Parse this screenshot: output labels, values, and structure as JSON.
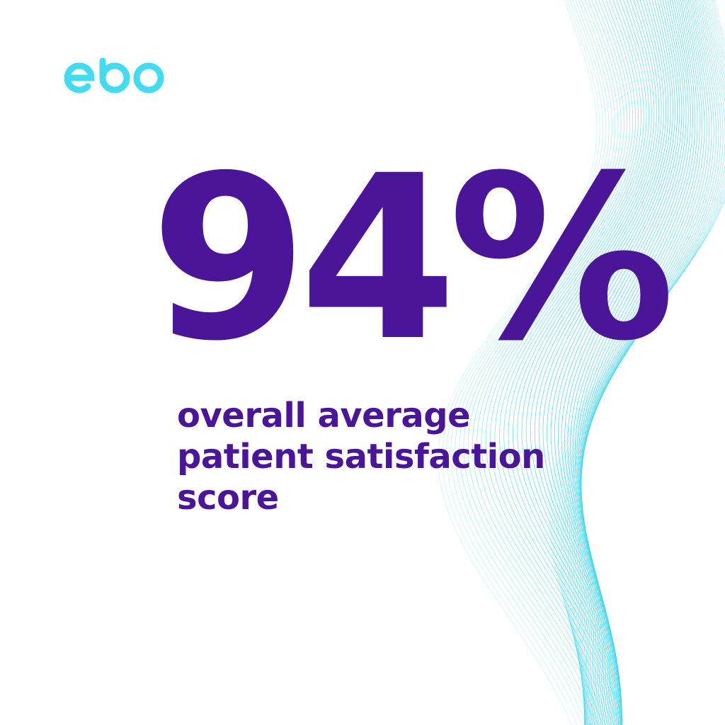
{
  "brand": {
    "logo_text": "ebo",
    "logo_color": "#43DBF1"
  },
  "stat": {
    "value": "94%",
    "color": "#4A1598"
  },
  "caption": {
    "lines": [
      "overall average",
      "patient satisfaction",
      "score"
    ],
    "color": "#4A1598"
  },
  "decoration": {
    "wave_color": "#3FD6EE"
  }
}
